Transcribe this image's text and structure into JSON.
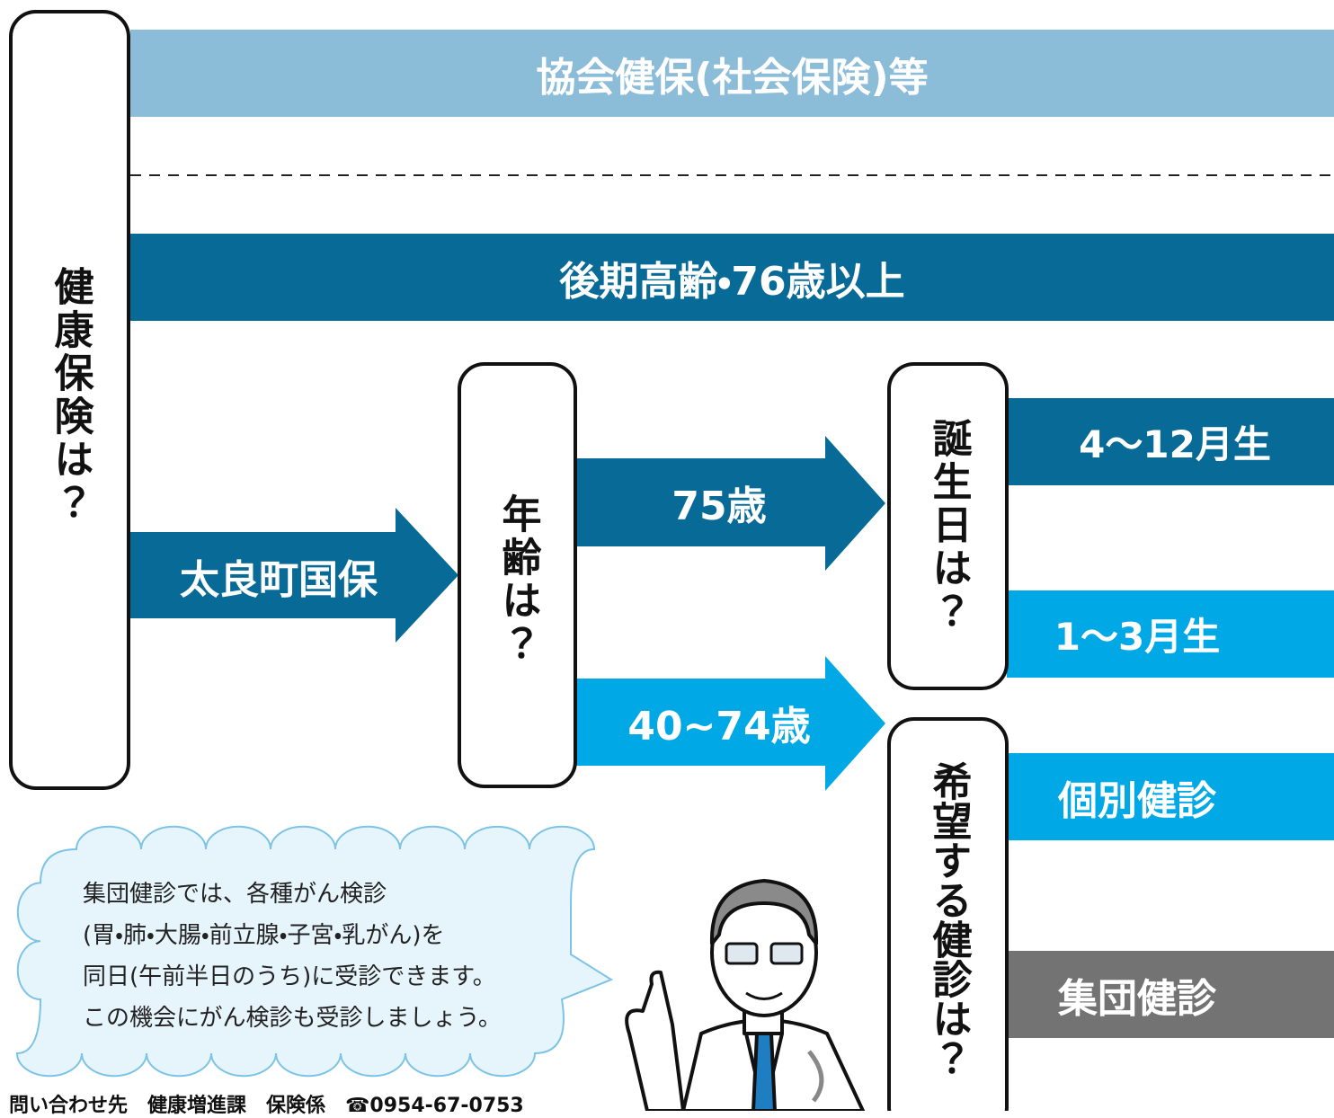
{
  "left_box": {
    "label": "健康保険は？"
  },
  "bands": {
    "kyokai": "協会健保(社会保険)等",
    "kouki": "後期高齢・76歳以上"
  },
  "arrows": [
    {
      "label": "太良町国保"
    },
    {
      "label": "75歳"
    },
    {
      "label": "40~74歳"
    }
  ],
  "boxes": [
    {
      "label": "年齢は？"
    },
    {
      "label": "誕生日は？"
    },
    {
      "label": "希望する健診は？"
    }
  ],
  "outcomes": [
    {
      "label": "4～12月生"
    },
    {
      "label": "1～3月生"
    },
    {
      "label": "個別健診"
    },
    {
      "label": "集団健診"
    }
  ],
  "bubble": {
    "lines": [
      "集団健診では、各種がん検診",
      "(胃・肺・大腸・前立腺・子宮・乳がん)を",
      "同日(午前半日のうち)に受診できます。",
      "この機会にがん検診も受診しましょう。"
    ]
  },
  "footer": {
    "text": "問い合わせ先　健康増進課　保険係　☎0954-67-0753"
  }
}
